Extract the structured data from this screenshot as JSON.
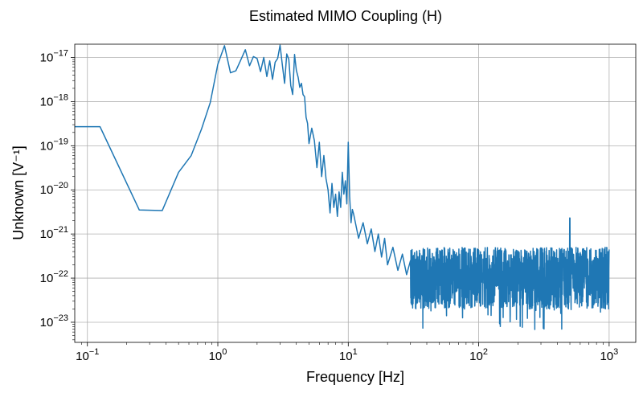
{
  "chart_data": {
    "type": "line",
    "title": "Estimated MIMO Coupling (H)",
    "xlabel": "Frequency [Hz]",
    "ylabel": "Unknown [V⁻¹]",
    "xscale": "log",
    "yscale": "log",
    "xlim": [
      0.08,
      1600
    ],
    "ylim": [
      3.5e-24,
      2e-17
    ],
    "grid": true,
    "line_color": "#1f77b4",
    "x_ticks": [
      {
        "value": 0.1,
        "base": "10",
        "exp": "−1"
      },
      {
        "value": 1,
        "base": "10",
        "exp": "0"
      },
      {
        "value": 10,
        "base": "10",
        "exp": "1"
      },
      {
        "value": 100,
        "base": "10",
        "exp": "2"
      },
      {
        "value": 1000,
        "base": "10",
        "exp": "3"
      }
    ],
    "y_ticks": [
      {
        "value": 1e-23,
        "base": "10",
        "exp": "−23"
      },
      {
        "value": 1e-22,
        "base": "10",
        "exp": "−22"
      },
      {
        "value": 1e-21,
        "base": "10",
        "exp": "−21"
      },
      {
        "value": 1e-20,
        "base": "10",
        "exp": "−20"
      },
      {
        "value": 1e-19,
        "base": "10",
        "exp": "−19"
      },
      {
        "value": 1e-18,
        "base": "10",
        "exp": "−18"
      },
      {
        "value": 1e-17,
        "base": "10",
        "exp": "−17"
      }
    ],
    "series": [
      {
        "name": "H",
        "x": [
          0.08,
          0.125,
          0.25,
          0.375,
          0.5,
          0.625,
          0.75,
          0.875,
          1.0,
          1.125,
          1.25,
          1.375,
          1.5,
          1.625,
          1.75,
          1.875,
          2.0,
          2.125,
          2.25,
          2.375,
          2.5,
          2.625,
          2.75,
          2.875,
          3.0,
          3.125,
          3.25,
          3.375,
          3.5,
          3.625,
          3.75,
          3.875,
          4.0,
          4.125,
          4.25,
          4.375,
          4.5,
          4.625,
          4.75,
          4.875,
          5.0,
          5.25,
          5.5,
          5.75,
          6.0,
          6.25,
          6.5,
          6.75,
          7.0,
          7.25,
          7.5,
          7.75,
          8.0,
          8.25,
          8.5,
          8.75,
          9.0,
          9.25,
          9.5,
          9.75,
          10.0,
          10.25,
          10.5,
          10.75,
          11.0,
          12.0,
          13.0,
          14.0,
          15.0,
          16.0,
          17.0,
          18.0,
          19.0,
          20.0,
          22.0,
          24.0,
          26.0,
          28.0,
          30.0
        ],
        "values": [
          2.7e-19,
          2.7e-19,
          3.5e-21,
          3.4e-21,
          2.5e-20,
          6e-20,
          2.4e-19,
          9.5e-19,
          7e-18,
          1.85e-17,
          4.5e-18,
          5e-18,
          8.8e-18,
          1.5e-17,
          6.5e-18,
          1.05e-17,
          9.5e-18,
          4.8e-18,
          1e-17,
          3.7e-18,
          8.4e-18,
          3.2e-18,
          7.8e-18,
          9.5e-18,
          1.9e-17,
          6.7e-18,
          2.6e-18,
          1.2e-17,
          9.1e-18,
          2.3e-18,
          1.45e-18,
          1.17e-17,
          5.1e-18,
          3.6e-18,
          2.1e-18,
          2.6e-18,
          1.44e-18,
          1.29e-18,
          4.4e-19,
          3.2e-19,
          1.12e-19,
          2.5e-19,
          1.3e-19,
          3.2e-20,
          1.2e-19,
          2e-20,
          6e-20,
          1.8e-20,
          1e-20,
          3e-21,
          1.4e-20,
          4e-21,
          8e-21,
          2.5e-21,
          9e-21,
          4e-21,
          2.5e-20,
          8e-21,
          1.6e-20,
          4.8e-21,
          1.2e-19,
          7e-21,
          1.8e-21,
          3.6e-21,
          2.8e-21,
          8e-22,
          1.8e-21,
          6e-22,
          1.3e-21,
          4e-22,
          1e-21,
          3e-22,
          8e-22,
          2e-22,
          5e-22,
          1.5e-22,
          3.5e-22,
          1.2e-22,
          2.5e-22
        ]
      }
    ],
    "noise_band": {
      "x_range": [
        30,
        1000
      ],
      "center": 1.2e-22,
      "upper_typical": 5e-22,
      "lower_typical": 2e-23,
      "extreme_low": 4e-24,
      "extreme_high": 2.3e-21,
      "spike_x": 500,
      "spike_value": 2.3e-21
    }
  }
}
